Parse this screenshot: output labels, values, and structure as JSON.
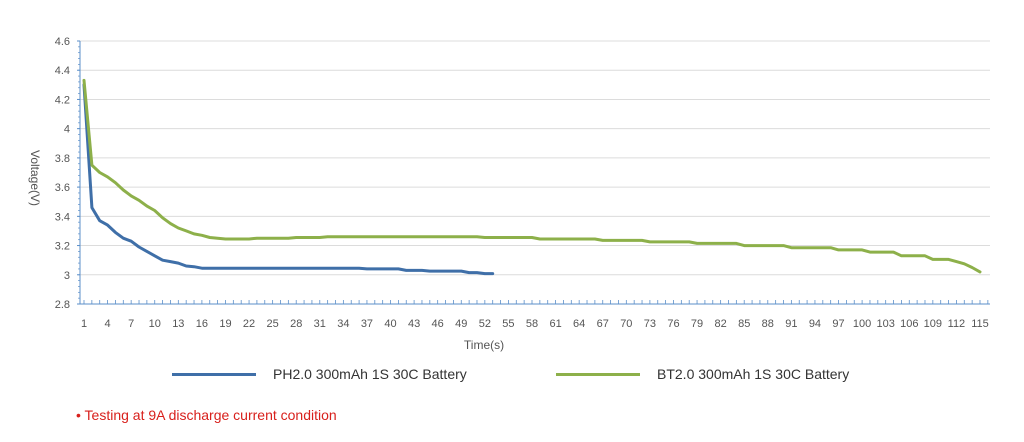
{
  "chart_data": {
    "type": "line",
    "title": "",
    "xlabel": "Time(s)",
    "ylabel": "Voltage(V)",
    "ylim": [
      2.8,
      4.6
    ],
    "yticks": [
      "2.8",
      "3",
      "3.2",
      "3.4",
      "3.6",
      "3.8",
      "4",
      "4.2",
      "4.4",
      "4.6"
    ],
    "xlim": [
      1,
      116
    ],
    "xticks": [
      "1",
      "4",
      "7",
      "10",
      "13",
      "16",
      "19",
      "22",
      "25",
      "28",
      "31",
      "34",
      "37",
      "40",
      "43",
      "46",
      "49",
      "52",
      "55",
      "58",
      "61",
      "64",
      "67",
      "70",
      "73",
      "76",
      "79",
      "82",
      "85",
      "88",
      "91",
      "94",
      "97",
      "100",
      "103",
      "106",
      "109",
      "112",
      "115"
    ],
    "grid": "horizontal",
    "legend_position": "bottom",
    "series": [
      {
        "name": "PH2.0 300mAh 1S 30C Battery",
        "color": "#3f6fa8",
        "values": [
          4.3,
          3.46,
          3.37,
          3.34,
          3.29,
          3.25,
          3.23,
          3.19,
          3.16,
          3.13,
          3.1,
          3.09,
          3.08,
          3.06,
          3.055,
          3.045,
          3.045,
          3.045,
          3.045,
          3.045,
          3.045,
          3.045,
          3.045,
          3.045,
          3.045,
          3.045,
          3.045,
          3.045,
          3.045,
          3.045,
          3.045,
          3.045,
          3.045,
          3.045,
          3.045,
          3.045,
          3.04,
          3.04,
          3.04,
          3.04,
          3.04,
          3.03,
          3.03,
          3.03,
          3.025,
          3.025,
          3.025,
          3.025,
          3.025,
          3.015,
          3.015,
          3.008,
          3.008
        ]
      },
      {
        "name": "BT2.0 300mAh 1S 30C Battery",
        "color": "#8db04a",
        "values": [
          4.33,
          3.75,
          3.7,
          3.67,
          3.63,
          3.58,
          3.54,
          3.51,
          3.47,
          3.44,
          3.39,
          3.35,
          3.32,
          3.3,
          3.28,
          3.27,
          3.255,
          3.25,
          3.245,
          3.245,
          3.245,
          3.245,
          3.25,
          3.25,
          3.25,
          3.25,
          3.25,
          3.255,
          3.255,
          3.255,
          3.255,
          3.26,
          3.26,
          3.26,
          3.26,
          3.26,
          3.26,
          3.26,
          3.26,
          3.26,
          3.26,
          3.26,
          3.26,
          3.26,
          3.26,
          3.26,
          3.26,
          3.26,
          3.26,
          3.26,
          3.26,
          3.255,
          3.255,
          3.255,
          3.255,
          3.255,
          3.255,
          3.255,
          3.245,
          3.245,
          3.245,
          3.245,
          3.245,
          3.245,
          3.245,
          3.245,
          3.235,
          3.235,
          3.235,
          3.235,
          3.235,
          3.235,
          3.225,
          3.225,
          3.225,
          3.225,
          3.225,
          3.225,
          3.215,
          3.215,
          3.215,
          3.215,
          3.215,
          3.215,
          3.2,
          3.2,
          3.2,
          3.2,
          3.2,
          3.2,
          3.185,
          3.185,
          3.185,
          3.185,
          3.185,
          3.185,
          3.17,
          3.17,
          3.17,
          3.17,
          3.155,
          3.155,
          3.155,
          3.155,
          3.13,
          3.13,
          3.13,
          3.13,
          3.105,
          3.105,
          3.105,
          3.09,
          3.075,
          3.05,
          3.02
        ]
      }
    ]
  },
  "footnote": "• Testing at 9A discharge current condition"
}
